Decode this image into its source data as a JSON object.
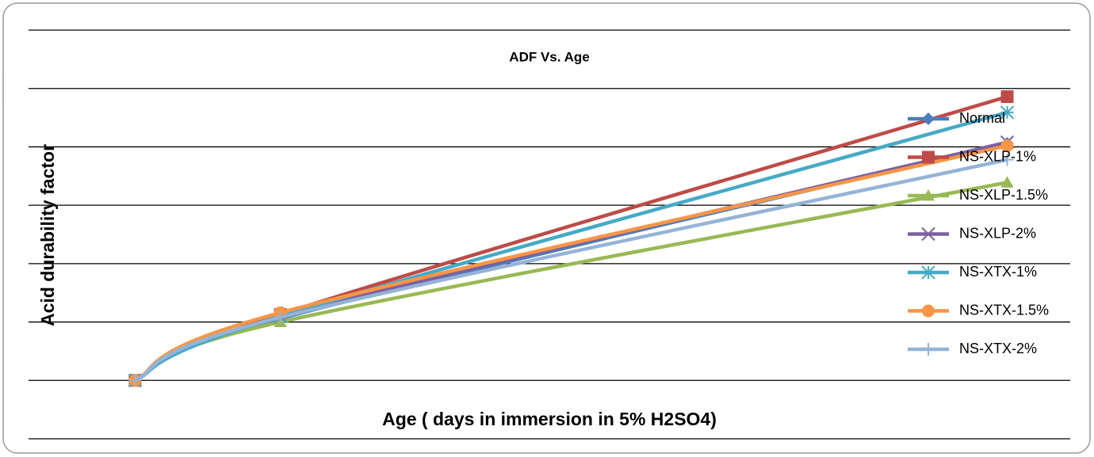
{
  "chart_data": {
    "type": "line",
    "title": "ADF Vs. Age",
    "x_label": "Age ( days in immersion in 5% H2SO4)",
    "y_label": "Acid durability factor",
    "x": [
      0,
      30,
      180
    ],
    "xlim": [
      -22,
      193
    ],
    "ylim": [
      -1,
      6
    ],
    "yticks": [
      -1,
      0,
      1,
      2,
      3,
      4,
      5,
      6
    ],
    "grid": true,
    "smooth": true,
    "legend": "right",
    "series": [
      {
        "name": "Normal",
        "color": "#4a7ebb",
        "marker": "diamond",
        "values": [
          0,
          1.06,
          4.06
        ]
      },
      {
        "name": "NS-XLP-1%",
        "color": "#be4b48",
        "marker": "square",
        "values": [
          0,
          1.13,
          4.86
        ]
      },
      {
        "name": "NS-XLP-1.5%",
        "color": "#98b954",
        "marker": "triangle",
        "values": [
          0,
          1.0,
          3.39
        ]
      },
      {
        "name": "NS-XLP-2%",
        "color": "#7d60a0",
        "marker": "x",
        "values": [
          0,
          1.09,
          4.08
        ]
      },
      {
        "name": "NS-XTX-1%",
        "color": "#46aac5",
        "marker": "asterisk",
        "values": [
          0,
          1.1,
          4.59
        ]
      },
      {
        "name": "NS-XTX-1.5%",
        "color": "#f79646",
        "marker": "circle",
        "values": [
          0,
          1.16,
          4.02
        ]
      },
      {
        "name": "NS-XTX-2%",
        "color": "#95b3d7",
        "marker": "plus",
        "values": [
          0,
          1.08,
          3.78
        ]
      }
    ]
  }
}
